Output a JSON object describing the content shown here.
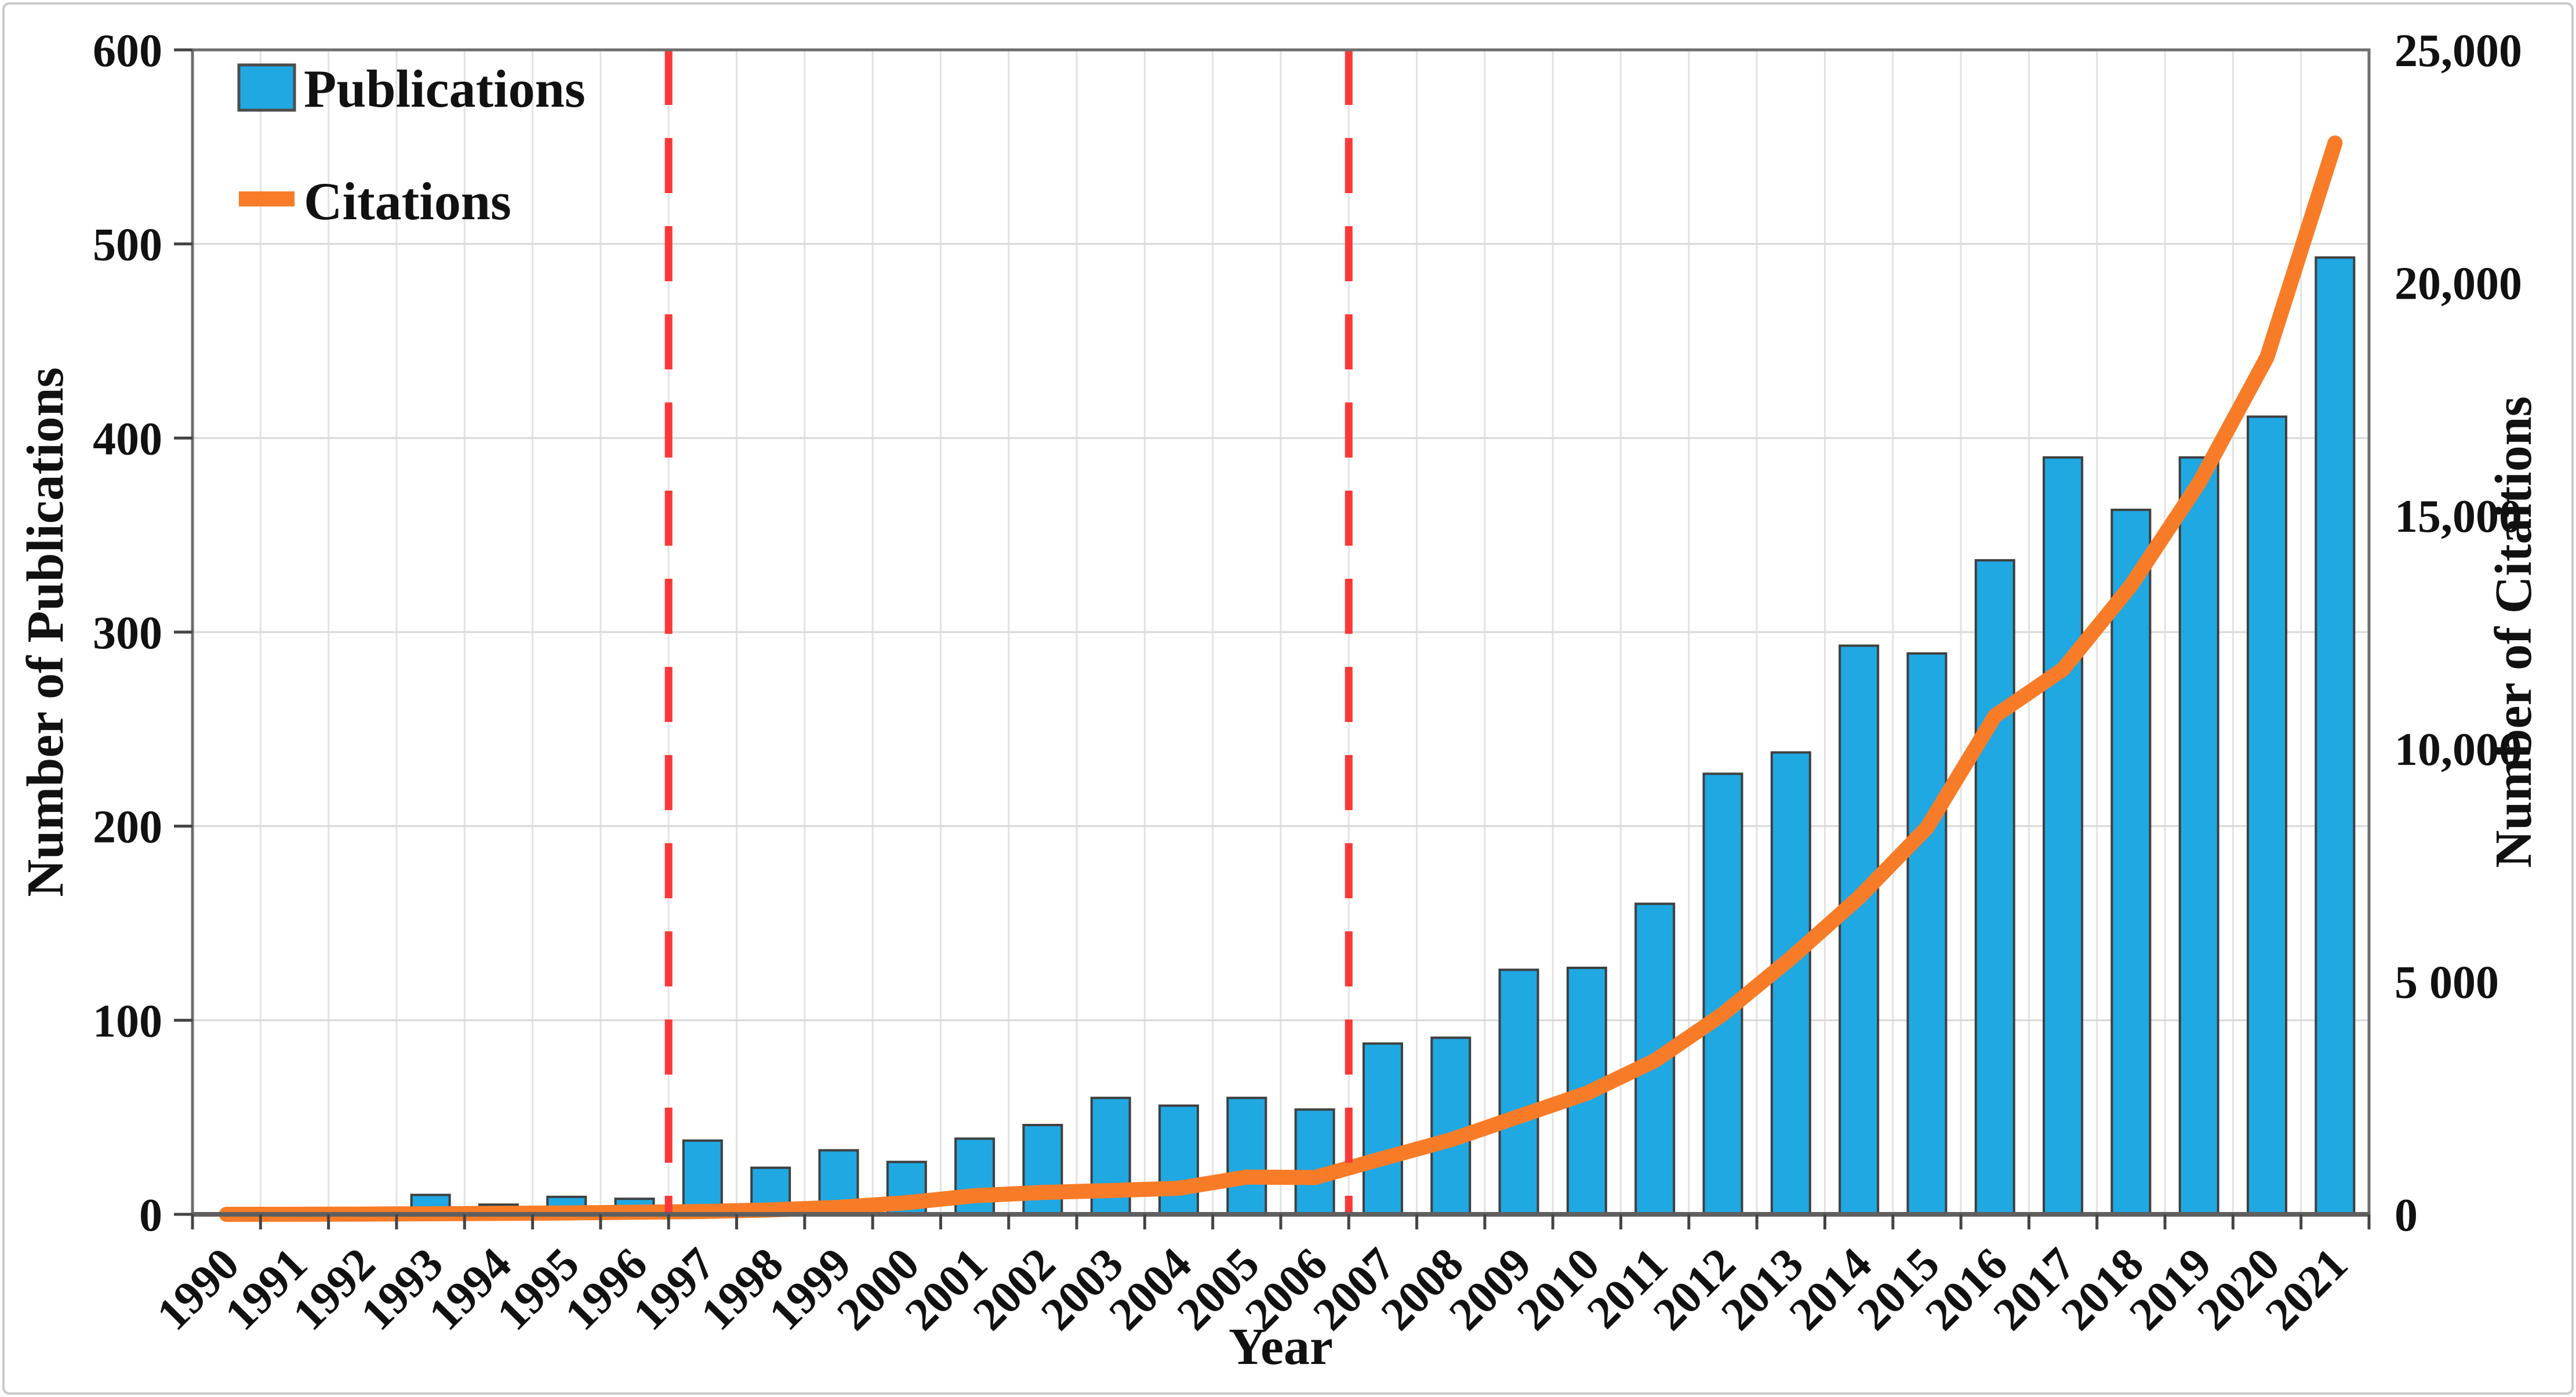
{
  "figure": {
    "background": "#ffffff",
    "border_color": "#c9c9c9"
  },
  "chart_data": {
    "type": "bar+line dual-axis",
    "title": "",
    "xlabel": "Year",
    "ylabel_left": "Number of Publications",
    "ylabel_right": "Number of Citaitions",
    "ylim_left": [
      0,
      600
    ],
    "ylim_right": [
      0,
      25000
    ],
    "grid": true,
    "legend_position": "top-left",
    "categories": [
      "1990",
      "1991",
      "1992",
      "1993",
      "1994",
      "1995",
      "1996",
      "1997",
      "1998",
      "1999",
      "2000",
      "2001",
      "2002",
      "2003",
      "2004",
      "2005",
      "2006",
      "2007",
      "2008",
      "2009",
      "2010",
      "2011",
      "2012",
      "2013",
      "2014",
      "2015",
      "2016",
      "2017",
      "2018",
      "2019",
      "2020",
      "2021"
    ],
    "series": [
      {
        "name": "Publications",
        "type": "bar",
        "axis": "left",
        "color": "#1FA8E2",
        "border_color": "#3f3f3f",
        "values": [
          0,
          1,
          2,
          10,
          5,
          9,
          8,
          38,
          24,
          33,
          27,
          39,
          46,
          60,
          56,
          60,
          54,
          88,
          91,
          126,
          127,
          160,
          227,
          238,
          293,
          289,
          337,
          390,
          363,
          390,
          411,
          493
        ]
      },
      {
        "name": "Citations",
        "type": "line",
        "axis": "right",
        "color": "#F87C28",
        "values": [
          0,
          2,
          5,
          12,
          20,
          30,
          45,
          60,
          95,
          150,
          250,
          400,
          470,
          510,
          560,
          800,
          790,
          1200,
          1600,
          2100,
          2600,
          3300,
          4300,
          5500,
          6800,
          8300,
          10700,
          11700,
          13500,
          15700,
          18400,
          23000
        ]
      }
    ],
    "y_left_ticks": [
      {
        "v": 0,
        "label": "0"
      },
      {
        "v": 100,
        "label": "100"
      },
      {
        "v": 200,
        "label": "200"
      },
      {
        "v": 300,
        "label": "300"
      },
      {
        "v": 400,
        "label": "400"
      },
      {
        "v": 500,
        "label": "500"
      },
      {
        "v": 600,
        "label": "600"
      }
    ],
    "y_right_ticks": [
      {
        "v": 0,
        "label": "0"
      },
      {
        "v": 5000,
        "label": "5 000"
      },
      {
        "v": 10000,
        "label": "10,000"
      },
      {
        "v": 15000,
        "label": "15,000"
      },
      {
        "v": 20000,
        "label": "20,000"
      },
      {
        "v": 25000,
        "label": "25,000"
      }
    ],
    "annotations": {
      "vlines": [
        {
          "after_category": "1996",
          "color": "#FB3838",
          "style": "dashed"
        },
        {
          "after_category": "2006",
          "color": "#FB3838",
          "style": "dashed"
        }
      ]
    }
  }
}
